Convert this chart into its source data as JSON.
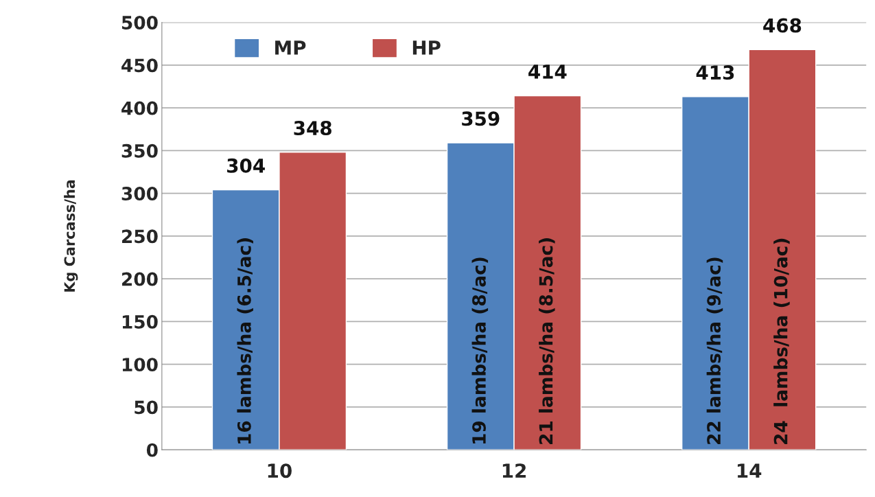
{
  "chart_data": {
    "type": "bar",
    "ylabel": "Kg Carcass/ha",
    "categories": [
      "10",
      "12",
      "14"
    ],
    "series": [
      {
        "name": "MP",
        "color": "#4f81bd",
        "values": [
          304,
          359,
          413
        ]
      },
      {
        "name": "HP",
        "color": "#c0504d",
        "values": [
          348,
          414,
          468
        ]
      }
    ],
    "ylim": [
      0,
      500
    ],
    "yticks": [
      0,
      50,
      100,
      150,
      200,
      250,
      300,
      350,
      400,
      450,
      500
    ],
    "grid": "y",
    "legend": "top left",
    "data_labels": true,
    "annotations": [
      {
        "text": "16 lambs/ha (6.5/ac)",
        "x": "10",
        "y": 0
      },
      {
        "text": "19 lambs/ha (8/ac)",
        "x": "12",
        "y": 0
      },
      {
        "text": "21 lambs/ha (8.5/ac)",
        "x": "12",
        "y": 0
      },
      {
        "text": "22 lambs/ha (9/ac)",
        "x": "14",
        "y": 0
      },
      {
        "text": "24  lambs/ha (10/ac)",
        "x": "14",
        "y": 0
      }
    ]
  }
}
